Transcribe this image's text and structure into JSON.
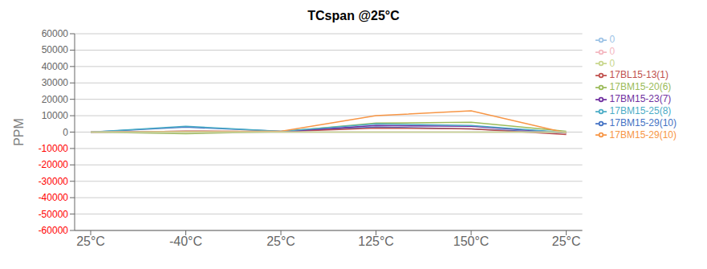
{
  "chart_data": {
    "type": "line",
    "title": "TCspan @25°C",
    "categories": [
      "25°C",
      "-40°C",
      "25°C",
      "125°C",
      "150°C",
      "25°C"
    ],
    "ylabel": "PPM",
    "ylim": [
      -60000,
      60000
    ],
    "yticks": [
      -60000,
      -50000,
      -40000,
      -30000,
      -20000,
      -10000,
      0,
      10000,
      20000,
      30000,
      40000,
      50000,
      60000
    ],
    "grid": true,
    "legend": "right",
    "series": [
      {
        "name": "17BM15-29(10)",
        "color": "#4472C4",
        "values": [
          0,
          3000,
          500,
          3000,
          2000,
          -500
        ]
      },
      {
        "name": "17BL15-13(1)",
        "color": "#C0504D",
        "values": [
          0,
          500,
          200,
          2500,
          2000,
          -1500
        ]
      },
      {
        "name": "17BM15-20(6)",
        "color": "#9BBB59",
        "values": [
          0,
          -1000,
          200,
          5500,
          6000,
          500
        ]
      },
      {
        "name": "17BM15-23(7)",
        "color": "#7030A0",
        "values": [
          0,
          500,
          200,
          4000,
          3500,
          -500
        ]
      },
      {
        "name": "17BM15-25(8)",
        "color": "#4BACC6",
        "values": [
          0,
          3500,
          500,
          5000,
          4000,
          -200
        ]
      },
      {
        "name": "17BM15-29(10)",
        "color": "#F79646",
        "values": [
          0,
          500,
          500,
          10000,
          13000,
          -500
        ]
      },
      {
        "name": "0",
        "color": "#9DC3E6",
        "values": [
          0,
          0,
          0,
          0,
          0,
          0
        ]
      },
      {
        "name": "0",
        "color": "#F4B8C1",
        "values": [
          0,
          0,
          0,
          0,
          0,
          0
        ]
      },
      {
        "name": "0",
        "color": "#C9D78E",
        "values": [
          0,
          0,
          0,
          0,
          0,
          0
        ]
      }
    ]
  }
}
